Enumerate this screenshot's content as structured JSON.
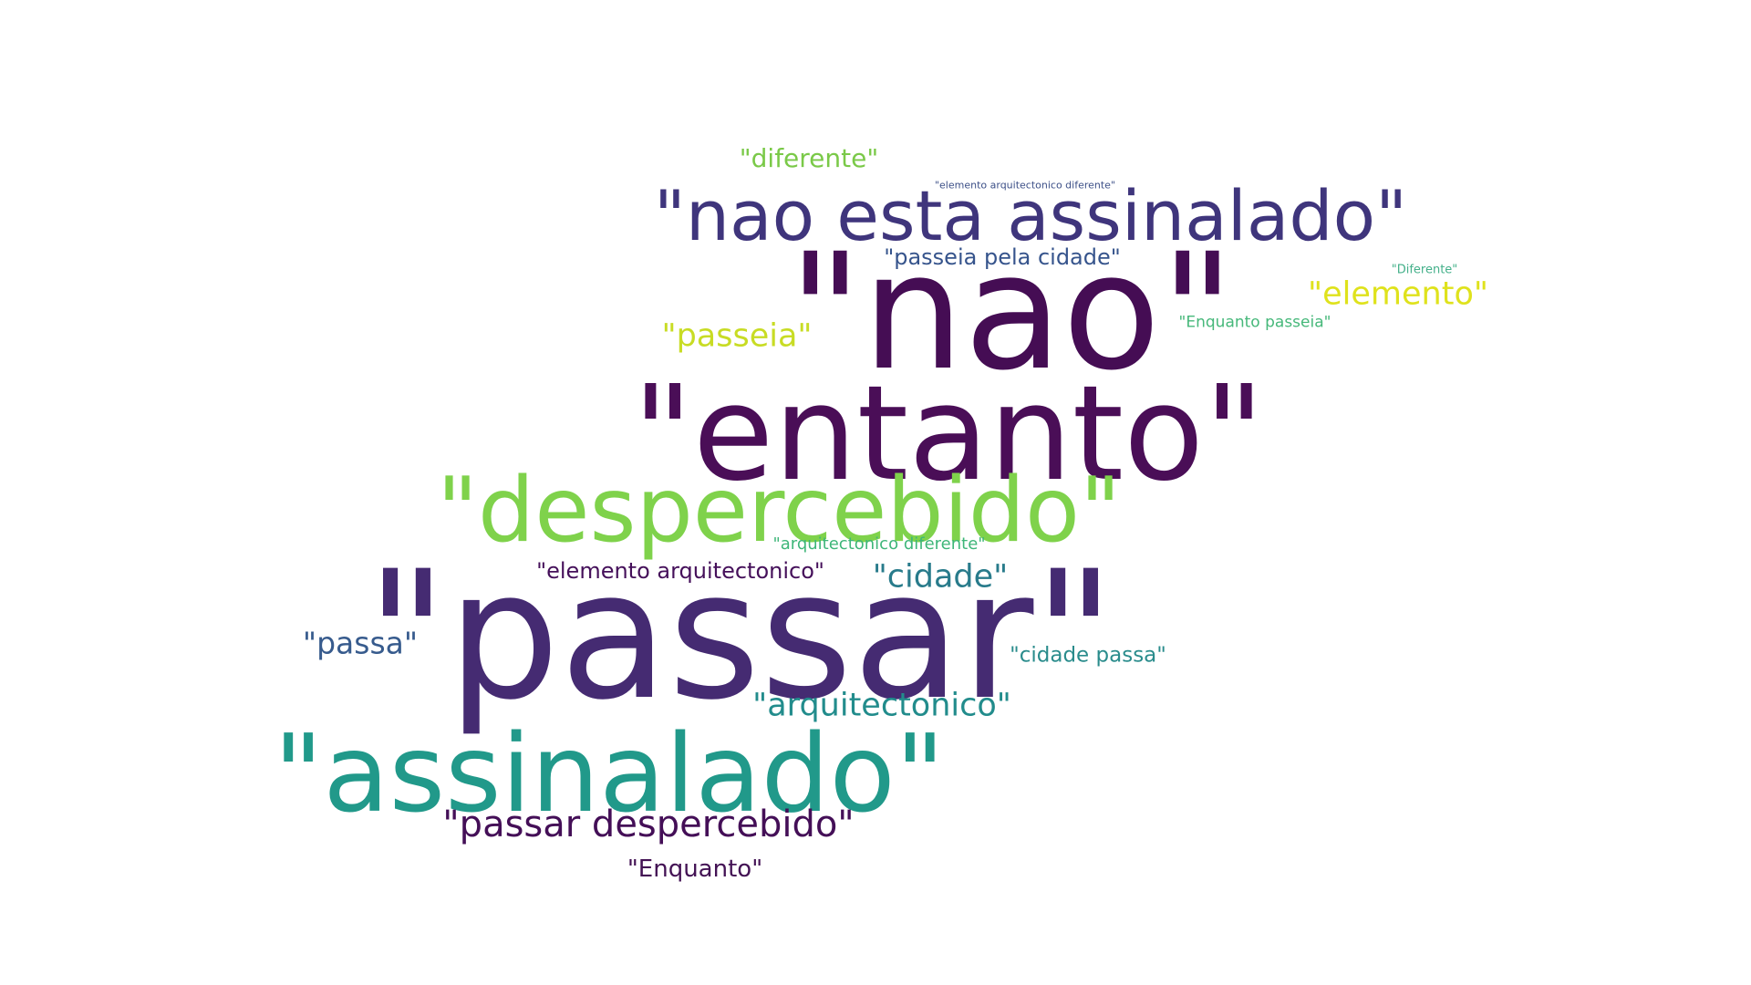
{
  "words": [
    {
      "text": "\"nao\"",
      "color": "#450d54"
    },
    {
      "text": "\"entanto\"",
      "color": "#4a0e57"
    },
    {
      "text": "\"passar\"",
      "color": "#452b72"
    },
    {
      "text": "\"assinalado\"",
      "color": "#21998a"
    },
    {
      "text": "\"despercebido\"",
      "color": "#7fd24b"
    },
    {
      "text": "\"nao esta assinalado\"",
      "color": "#3f357c"
    },
    {
      "text": "\"passar despercebido\"",
      "color": "#440f57"
    },
    {
      "text": "\"arquitectonico\"",
      "color": "#228c8c"
    },
    {
      "text": "\"cidade\"",
      "color": "#287b8b"
    },
    {
      "text": "\"elemento\"",
      "color": "#dfe21c"
    },
    {
      "text": "\"passeia\"",
      "color": "#c8dc24"
    },
    {
      "text": "\"passa\"",
      "color": "#375b8d"
    },
    {
      "text": "\"diferente\"",
      "color": "#7ac948"
    },
    {
      "text": "\"Enquanto\"",
      "color": "#431254"
    },
    {
      "text": "\"passeia pela cidade\"",
      "color": "#36548c"
    },
    {
      "text": "\"elemento arquitectonico\"",
      "color": "#45105a"
    },
    {
      "text": "\"cidade passa\"",
      "color": "#2a8c8c"
    },
    {
      "text": "\"arquitectonico diferente\"",
      "color": "#3eb679"
    },
    {
      "text": "\"Enquanto passeia\"",
      "color": "#46b87a"
    },
    {
      "text": "\"elemento arquitectonico diferente\"",
      "color": "#3c4f87"
    },
    {
      "text": "\"Diferente\"",
      "color": "#44b08a"
    }
  ]
}
